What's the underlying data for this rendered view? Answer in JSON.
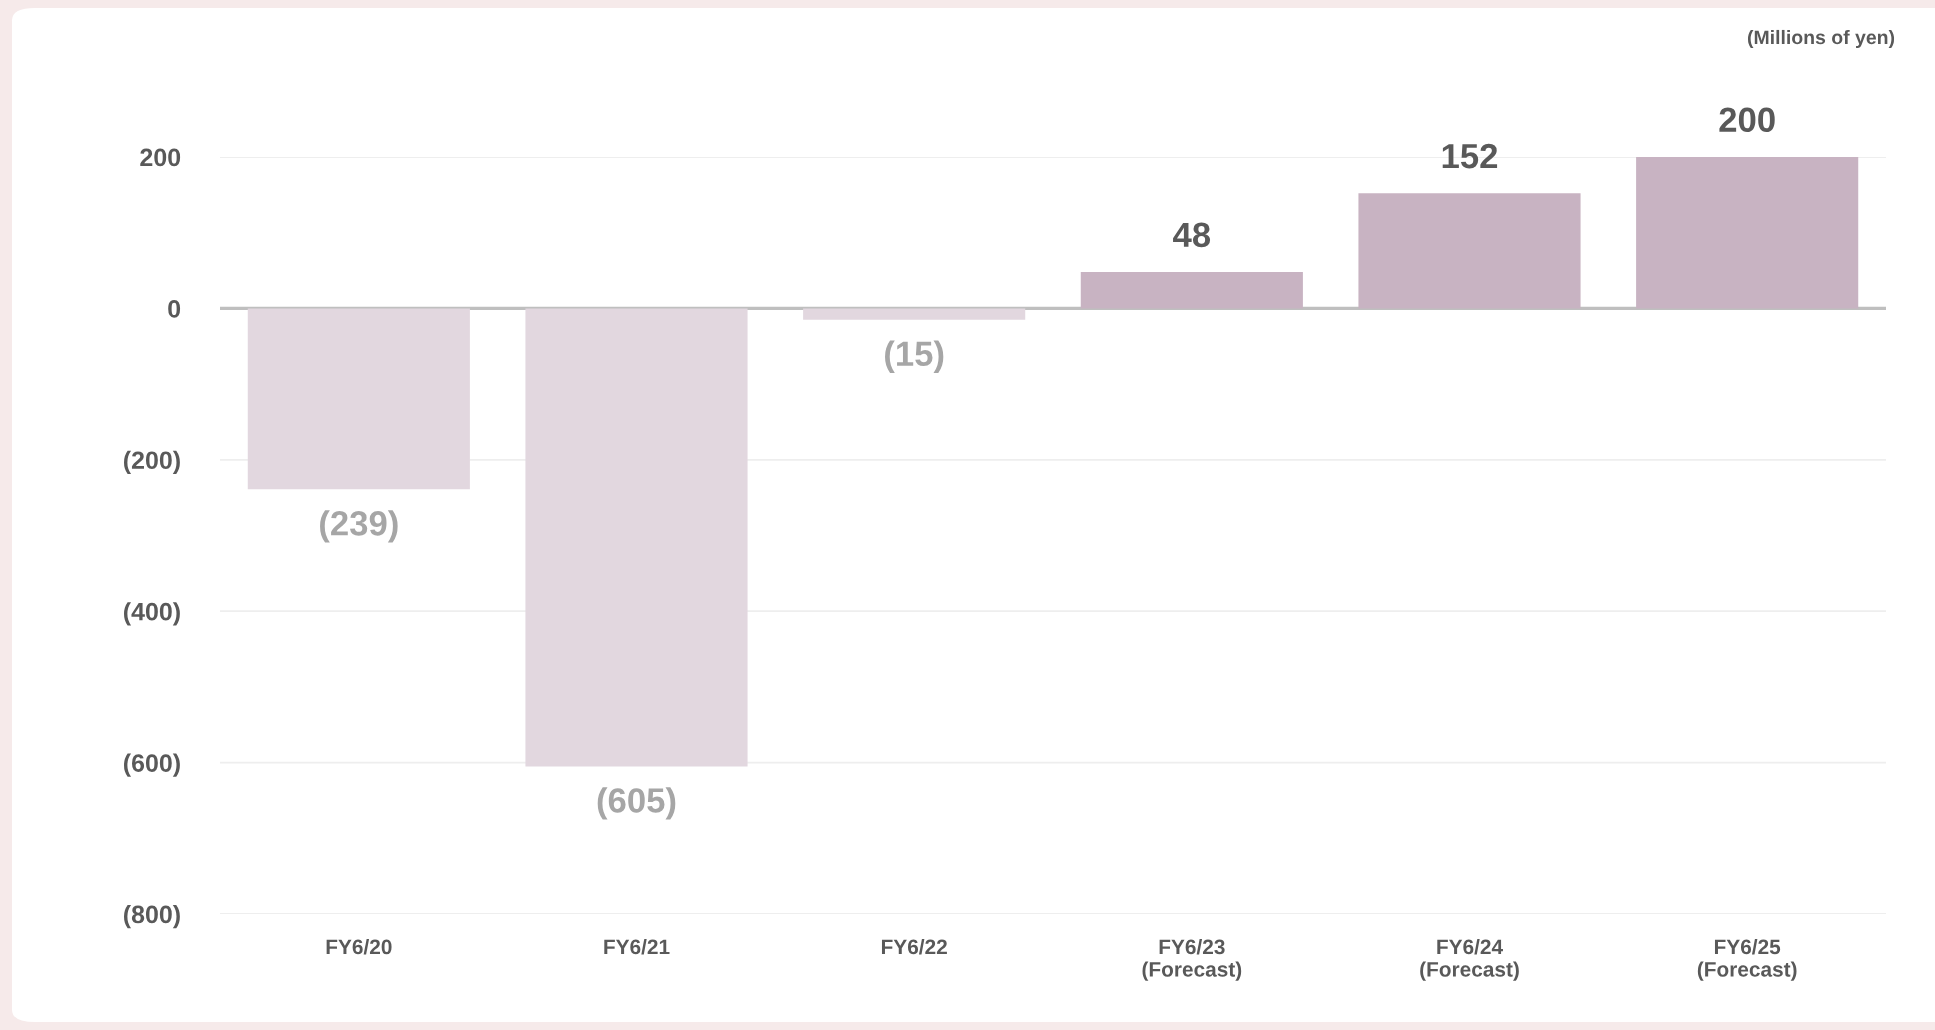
{
  "chart_data": {
    "type": "bar",
    "annotations": [
      "(Millions of yen)"
    ],
    "categories": [
      "FY6/20",
      "FY6/21",
      "FY6/22",
      "FY6/23\n(Forecast)",
      "FY6/24\n(Forecast)",
      "FY6/25\n(Forecast)"
    ],
    "values": [
      -239,
      -605,
      -15,
      48,
      152,
      200
    ],
    "colors": [
      "#e2d7df",
      "#e2d7df",
      "#e2d7df",
      "#c8b3c2",
      "#c8b3c2",
      "#c8b3c2"
    ],
    "value_labels": [
      "(239)",
      "(605)",
      "(15)",
      "48",
      "152",
      "200"
    ],
    "ylim": [
      -800,
      200
    ],
    "yticks": [
      {
        "value": -800,
        "label": "(800)"
      },
      {
        "value": -600,
        "label": "(600)"
      },
      {
        "value": -400,
        "label": "(400)"
      },
      {
        "value": -200,
        "label": "(200)"
      },
      0,
      200
    ],
    "grid": "y"
  }
}
